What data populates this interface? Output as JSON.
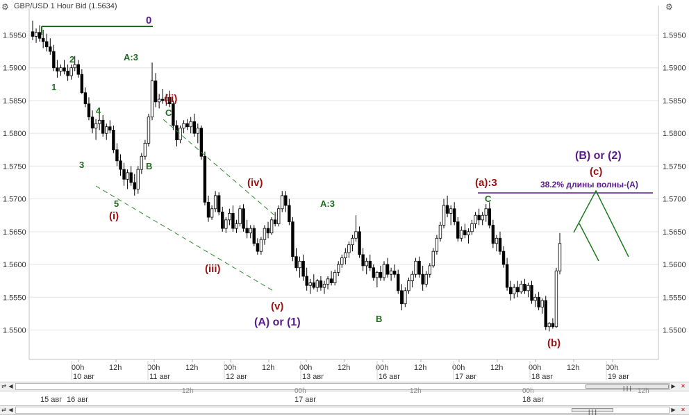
{
  "window": {
    "title": "GBP/USD 1 Hour Bid (1.5634)",
    "corner_icon_left": "chart-settings-icon",
    "corner_icon_right": "chart-settings-icon"
  },
  "colors": {
    "up_candle": "#ffffff",
    "down_candle": "#000000",
    "green_label": "#1e6b1e",
    "red_label": "#9b1010",
    "purple_label": "#5a1a8c",
    "channel": "#2a8a2a",
    "wave_projection": "#1e7a1e",
    "fib_line": "#5a1a8c",
    "top_line": "#1e6b1e",
    "grid": "#e4e4e4"
  },
  "chart_data": {
    "type": "candlestick",
    "title": "GBP/USD 1 Hour Bid (1.5634)",
    "ylim": [
      1.5455,
      1.5995
    ],
    "y_ticks": [
      "1.5950",
      "1.5900",
      "1.5850",
      "1.5800",
      "1.5750",
      "1.5700",
      "1.5650",
      "1.5600",
      "1.5550",
      "1.5500"
    ],
    "x_time_ticks": [
      "00h",
      "12h",
      "00h",
      "12h",
      "00h",
      "12h",
      "00h",
      "12h",
      "00h",
      "12h",
      "00h",
      "12h",
      "00h",
      "12h",
      "00h"
    ],
    "x_date_ticks": [
      "10 авг",
      "11 авг",
      "12 авг",
      "13 авг",
      "16 авг",
      "17 авг",
      "18 авг",
      "19 авг"
    ],
    "current_price": 1.5634,
    "wave_labels": [
      {
        "text": "0",
        "price": 1.597,
        "color": "purple"
      },
      {
        "text": "1",
        "price": 1.5873,
        "color": "green"
      },
      {
        "text": "2",
        "price": 1.5918,
        "color": "green"
      },
      {
        "text": "3",
        "price": 1.576,
        "color": "green"
      },
      {
        "text": "4",
        "price": 1.5838,
        "color": "green"
      },
      {
        "text": "5",
        "price": 1.569,
        "color": "green"
      },
      {
        "text": "(i)",
        "price": 1.567,
        "color": "red"
      },
      {
        "text": "A:3",
        "price": 1.592,
        "color": "green"
      },
      {
        "text": "B",
        "price": 1.576,
        "color": "green"
      },
      {
        "text": "(ii)",
        "price": 1.5855,
        "color": "red"
      },
      {
        "text": "C",
        "price": 1.5832,
        "color": "green"
      },
      {
        "text": "(iii)",
        "price": 1.5595,
        "color": "red"
      },
      {
        "text": "(iv)",
        "price": 1.5725,
        "color": "red"
      },
      {
        "text": "(v)",
        "price": 1.5515,
        "color": "red"
      },
      {
        "text": "(A) or (1)",
        "price": 1.549,
        "color": "purple"
      },
      {
        "text": "A:3",
        "price": 1.569,
        "color": "green"
      },
      {
        "text": "B",
        "price": 1.548,
        "color": "green"
      },
      {
        "text": "(a):3",
        "price": 1.5725,
        "color": "red"
      },
      {
        "text": "C",
        "price": 1.57,
        "color": "green"
      },
      {
        "text": "(b)",
        "price": 1.548,
        "color": "red"
      },
      {
        "text": "(B) or (2)",
        "price": 1.5775,
        "color": "purple"
      },
      {
        "text": "(c)",
        "price": 1.575,
        "color": "red"
      }
    ],
    "annotations": [
      "38.2% длины волны-(A)"
    ],
    "candles": [
      [
        1.5955,
        1.5972,
        1.5942,
        1.5948
      ],
      [
        1.5948,
        1.596,
        1.5938,
        1.5954
      ],
      [
        1.5954,
        1.5965,
        1.594,
        1.5945
      ],
      [
        1.5945,
        1.5958,
        1.593,
        1.594
      ],
      [
        1.594,
        1.5952,
        1.5925,
        1.5932
      ],
      [
        1.5932,
        1.5945,
        1.592,
        1.5925
      ],
      [
        1.5925,
        1.5935,
        1.5895,
        1.59
      ],
      [
        1.59,
        1.5912,
        1.5885,
        1.5895
      ],
      [
        1.5895,
        1.5905,
        1.5888,
        1.59
      ],
      [
        1.59,
        1.5912,
        1.589,
        1.5895
      ],
      [
        1.5895,
        1.5905,
        1.588,
        1.5888
      ],
      [
        1.5888,
        1.5905,
        1.5882,
        1.59
      ],
      [
        1.59,
        1.5918,
        1.5895,
        1.5905
      ],
      [
        1.5905,
        1.5912,
        1.5885,
        1.589
      ],
      [
        1.589,
        1.5898,
        1.586,
        1.5862
      ],
      [
        1.5862,
        1.587,
        1.584,
        1.5845
      ],
      [
        1.5845,
        1.5855,
        1.582,
        1.5825
      ],
      [
        1.5825,
        1.5835,
        1.58,
        1.5808
      ],
      [
        1.5808,
        1.5822,
        1.579,
        1.5815
      ],
      [
        1.5815,
        1.583,
        1.5805,
        1.582
      ],
      [
        1.582,
        1.5828,
        1.5795,
        1.58
      ],
      [
        1.58,
        1.5815,
        1.579,
        1.581
      ],
      [
        1.581,
        1.582,
        1.58,
        1.5805
      ],
      [
        1.5805,
        1.5812,
        1.577,
        1.5775
      ],
      [
        1.5775,
        1.5785,
        1.575,
        1.5758
      ],
      [
        1.5758,
        1.5768,
        1.5735,
        1.5745
      ],
      [
        1.5745,
        1.5755,
        1.572,
        1.573
      ],
      [
        1.573,
        1.5745,
        1.5715,
        1.574
      ],
      [
        1.574,
        1.575,
        1.572,
        1.5725
      ],
      [
        1.5725,
        1.5738,
        1.5705,
        1.5715
      ],
      [
        1.5715,
        1.575,
        1.5708,
        1.5745
      ],
      [
        1.5745,
        1.577,
        1.5738,
        1.5765
      ],
      [
        1.5765,
        1.579,
        1.576,
        1.5785
      ],
      [
        1.5785,
        1.583,
        1.578,
        1.5825
      ],
      [
        1.5825,
        1.5908,
        1.582,
        1.588
      ],
      [
        1.588,
        1.5892,
        1.584,
        1.5848
      ],
      [
        1.5848,
        1.586,
        1.5838,
        1.5852
      ],
      [
        1.5852,
        1.5868,
        1.5845,
        1.585
      ],
      [
        1.585,
        1.586,
        1.5842,
        1.5855
      ],
      [
        1.5855,
        1.5865,
        1.584,
        1.5845
      ],
      [
        1.5845,
        1.585,
        1.5805,
        1.5812
      ],
      [
        1.5812,
        1.582,
        1.578,
        1.579
      ],
      [
        1.579,
        1.5812,
        1.5785,
        1.5808
      ],
      [
        1.5808,
        1.582,
        1.58,
        1.5815
      ],
      [
        1.5815,
        1.5822,
        1.5805,
        1.581
      ],
      [
        1.581,
        1.5825,
        1.58,
        1.5818
      ],
      [
        1.5818,
        1.583,
        1.5795,
        1.58
      ],
      [
        1.58,
        1.5815,
        1.5785,
        1.5808
      ],
      [
        1.5808,
        1.5812,
        1.576,
        1.5765
      ],
      [
        1.5765,
        1.5772,
        1.569,
        1.5695
      ],
      [
        1.5695,
        1.5705,
        1.5665,
        1.5672
      ],
      [
        1.5672,
        1.569,
        1.5668,
        1.5685
      ],
      [
        1.5685,
        1.5712,
        1.568,
        1.5705
      ],
      [
        1.5705,
        1.571,
        1.5675,
        1.568
      ],
      [
        1.568,
        1.5688,
        1.565,
        1.5655
      ],
      [
        1.5655,
        1.5672,
        1.5648,
        1.5668
      ],
      [
        1.5668,
        1.5685,
        1.566,
        1.5678
      ],
      [
        1.5678,
        1.569,
        1.565,
        1.5655
      ],
      [
        1.5655,
        1.5668,
        1.5648,
        1.5662
      ],
      [
        1.5662,
        1.569,
        1.5658,
        1.5685
      ],
      [
        1.5685,
        1.5692,
        1.565,
        1.5655
      ],
      [
        1.5655,
        1.5668,
        1.564,
        1.5648
      ],
      [
        1.5648,
        1.566,
        1.564,
        1.5655
      ],
      [
        1.5655,
        1.566,
        1.5628,
        1.5632
      ],
      [
        1.5632,
        1.564,
        1.5615,
        1.562
      ],
      [
        1.562,
        1.5642,
        1.5615,
        1.5638
      ],
      [
        1.5638,
        1.566,
        1.563,
        1.5655
      ],
      [
        1.5655,
        1.5665,
        1.564,
        1.5648
      ],
      [
        1.5648,
        1.5672,
        1.5645,
        1.5668
      ],
      [
        1.5668,
        1.568,
        1.5658,
        1.5662
      ],
      [
        1.5662,
        1.569,
        1.5658,
        1.5685
      ],
      [
        1.5685,
        1.5712,
        1.568,
        1.5705
      ],
      [
        1.5705,
        1.5712,
        1.568,
        1.569
      ],
      [
        1.569,
        1.57,
        1.566,
        1.5665
      ],
      [
        1.5665,
        1.5672,
        1.5605,
        1.5612
      ],
      [
        1.5612,
        1.5625,
        1.559,
        1.5595
      ],
      [
        1.5595,
        1.5612,
        1.558,
        1.5605
      ],
      [
        1.5605,
        1.5615,
        1.5575,
        1.5582
      ],
      [
        1.5582,
        1.5595,
        1.556,
        1.5568
      ],
      [
        1.5568,
        1.5578,
        1.5555,
        1.5572
      ],
      [
        1.5572,
        1.5585,
        1.5562,
        1.5565
      ],
      [
        1.5565,
        1.5578,
        1.5558,
        1.5575
      ],
      [
        1.5575,
        1.5582,
        1.556,
        1.5565
      ],
      [
        1.5565,
        1.5575,
        1.5555,
        1.557
      ],
      [
        1.557,
        1.5582,
        1.5562,
        1.5578
      ],
      [
        1.5578,
        1.559,
        1.5568,
        1.5572
      ],
      [
        1.5572,
        1.5592,
        1.5568,
        1.5588
      ],
      [
        1.5588,
        1.5605,
        1.5582,
        1.56
      ],
      [
        1.56,
        1.5615,
        1.5595,
        1.561
      ],
      [
        1.561,
        1.5625,
        1.56,
        1.5618
      ],
      [
        1.5618,
        1.5635,
        1.561,
        1.563
      ],
      [
        1.563,
        1.5645,
        1.562,
        1.564
      ],
      [
        1.564,
        1.5675,
        1.5635,
        1.565
      ],
      [
        1.565,
        1.5658,
        1.561,
        1.5615
      ],
      [
        1.5615,
        1.5625,
        1.559,
        1.5598
      ],
      [
        1.5598,
        1.561,
        1.5585,
        1.5605
      ],
      [
        1.5605,
        1.5615,
        1.559,
        1.5595
      ],
      [
        1.5595,
        1.56,
        1.5575,
        1.558
      ],
      [
        1.558,
        1.559,
        1.5565,
        1.5588
      ],
      [
        1.5588,
        1.5598,
        1.5575,
        1.558
      ],
      [
        1.558,
        1.5605,
        1.5575,
        1.56
      ],
      [
        1.56,
        1.561,
        1.558,
        1.5585
      ],
      [
        1.5585,
        1.5595,
        1.5575,
        1.559
      ],
      [
        1.559,
        1.56,
        1.558,
        1.5585
      ],
      [
        1.5585,
        1.5592,
        1.5555,
        1.556
      ],
      [
        1.556,
        1.557,
        1.553,
        1.554
      ],
      [
        1.554,
        1.5565,
        1.5535,
        1.556
      ],
      [
        1.556,
        1.558,
        1.5555,
        1.5575
      ],
      [
        1.5575,
        1.559,
        1.5565,
        1.5585
      ],
      [
        1.5585,
        1.561,
        1.558,
        1.5605
      ],
      [
        1.5605,
        1.5612,
        1.558,
        1.5585
      ],
      [
        1.5585,
        1.5598,
        1.556,
        1.557
      ],
      [
        1.557,
        1.559,
        1.5565,
        1.5585
      ],
      [
        1.5585,
        1.5602,
        1.558,
        1.5598
      ],
      [
        1.5598,
        1.5625,
        1.5595,
        1.562
      ],
      [
        1.562,
        1.5645,
        1.5615,
        1.564
      ],
      [
        1.564,
        1.5665,
        1.5635,
        1.566
      ],
      [
        1.566,
        1.57,
        1.5655,
        1.569
      ],
      [
        1.569,
        1.5705,
        1.5672,
        1.5678
      ],
      [
        1.5678,
        1.569,
        1.566,
        1.5685
      ],
      [
        1.5685,
        1.5695,
        1.566,
        1.5665
      ],
      [
        1.5665,
        1.5672,
        1.5635,
        1.564
      ],
      [
        1.564,
        1.5658,
        1.5635,
        1.5652
      ],
      [
        1.5652,
        1.5662,
        1.564,
        1.5645
      ],
      [
        1.5645,
        1.5655,
        1.5632,
        1.565
      ],
      [
        1.565,
        1.5668,
        1.5645,
        1.5662
      ],
      [
        1.5662,
        1.568,
        1.5655,
        1.5675
      ],
      [
        1.5675,
        1.5685,
        1.566,
        1.5668
      ],
      [
        1.5668,
        1.568,
        1.566,
        1.5675
      ],
      [
        1.5675,
        1.5692,
        1.5665,
        1.5685
      ],
      [
        1.5685,
        1.5695,
        1.5655,
        1.566
      ],
      [
        1.566,
        1.5668,
        1.5625,
        1.5632
      ],
      [
        1.5632,
        1.5645,
        1.562,
        1.564
      ],
      [
        1.564,
        1.565,
        1.5615,
        1.562
      ],
      [
        1.562,
        1.5628,
        1.5595,
        1.56
      ],
      [
        1.56,
        1.561,
        1.556,
        1.5565
      ],
      [
        1.5565,
        1.5575,
        1.5545,
        1.5555
      ],
      [
        1.5555,
        1.557,
        1.5548,
        1.5565
      ],
      [
        1.5565,
        1.5575,
        1.555,
        1.5558
      ],
      [
        1.5558,
        1.5575,
        1.5555,
        1.557
      ],
      [
        1.557,
        1.5578,
        1.5555,
        1.556
      ],
      [
        1.556,
        1.5572,
        1.555,
        1.5568
      ],
      [
        1.5568,
        1.5575,
        1.554,
        1.5545
      ],
      [
        1.5545,
        1.5555,
        1.5535,
        1.555
      ],
      [
        1.555,
        1.5558,
        1.553,
        1.5535
      ],
      [
        1.5535,
        1.5548,
        1.5525,
        1.5545
      ],
      [
        1.5545,
        1.5552,
        1.55,
        1.5505
      ],
      [
        1.5505,
        1.5512,
        1.5498,
        1.551
      ],
      [
        1.551,
        1.5518,
        1.5502,
        1.5505
      ],
      [
        1.5505,
        1.5595,
        1.5503,
        1.559
      ],
      [
        1.559,
        1.5648,
        1.5585,
        1.5632
      ]
    ]
  },
  "bottom_panel": {
    "row1_dates": [
      "15 авг",
      "16 авг",
      "17 авг",
      "18 авг"
    ],
    "row2_ticks": [
      "12h",
      "00h",
      "12h",
      "00h",
      "12h"
    ]
  },
  "scrollbars": {
    "left_icon": "link-arrows-icon",
    "right_icon": "close-x-icon",
    "thumb_glyph": "|||"
  }
}
